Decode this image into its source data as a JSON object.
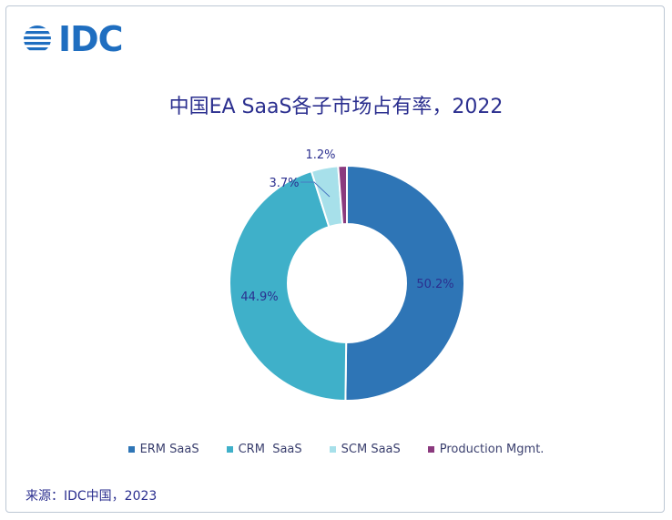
{
  "logo": {
    "text": "IDC"
  },
  "chart_data": {
    "type": "pie",
    "donut": true,
    "title": "中国EA SaaS各子市场占有率，2022",
    "categories": [
      "ERM SaaS",
      "CRM  SaaS",
      "SCM SaaS",
      "Production Mgmt."
    ],
    "values": [
      50.2,
      44.9,
      3.7,
      1.2
    ],
    "labels": [
      "50.2%",
      "44.9%",
      "3.7%",
      "1.2%"
    ],
    "colors": [
      "#2e75b6",
      "#3fb0c9",
      "#a7e0ea",
      "#8b3a7e"
    ],
    "legend_position": "bottom"
  },
  "source": "来源：IDC中国，2023"
}
